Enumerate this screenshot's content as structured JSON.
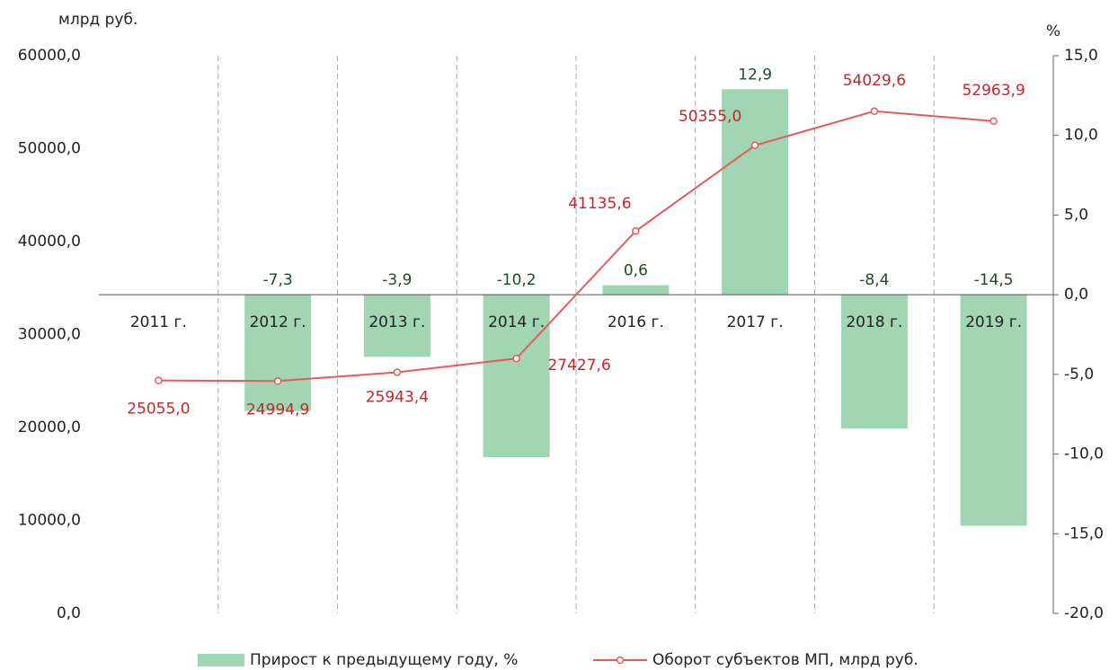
{
  "chart_data": {
    "type": "bar+line",
    "y_label": "млрд руб.",
    "y2_label": "%",
    "categories": [
      "2011 г.",
      "2012 г.",
      "2013 г.",
      "2014 г.",
      "2016 г.",
      "2017 г.",
      "2018 г.",
      "2019 г."
    ],
    "series": [
      {
        "name": "Прирост к предыдущему году, %",
        "type": "bar",
        "axis": "y2",
        "color": "#a2d5b4",
        "values": [
          null,
          -7.3,
          -3.9,
          -10.2,
          0.6,
          12.9,
          -8.4,
          -14.5
        ],
        "value_labels": [
          null,
          "-7,3",
          "-3,9",
          "-10,2",
          "0,6",
          "12,9",
          "-8,4",
          "-14,5"
        ]
      },
      {
        "name": "Оборот субъектов МП, млрд руб.",
        "type": "line",
        "axis": "y",
        "color": "#e8595a",
        "values": [
          25055.0,
          24994.9,
          25943.4,
          27427.6,
          41135.6,
          50355.0,
          54029.6,
          52963.9
        ],
        "value_labels": [
          "25055,0",
          "24994,9",
          "25943,4",
          "27427,6",
          "41135,6",
          "50355,0",
          "54029,6",
          "52963,9"
        ]
      }
    ],
    "ylim": [
      0,
      60000
    ],
    "yticks": [
      {
        "value": 0,
        "label": "0,0"
      },
      {
        "value": 10000,
        "label": "10000,0"
      },
      {
        "value": 20000,
        "label": "20000,0"
      },
      {
        "value": 30000,
        "label": "30000,0"
      },
      {
        "value": 40000,
        "label": "40000,0"
      },
      {
        "value": 50000,
        "label": "50000,0"
      },
      {
        "value": 60000,
        "label": "60000,0"
      }
    ],
    "y2lim": [
      -20,
      15
    ],
    "y2ticks": [
      {
        "value": -20,
        "label": "-20,0"
      },
      {
        "value": -15,
        "label": "-15,0"
      },
      {
        "value": -10,
        "label": "-10,0"
      },
      {
        "value": -5,
        "label": "-5,0"
      },
      {
        "value": 0,
        "label": "0,0"
      },
      {
        "value": 5,
        "label": "5,0"
      },
      {
        "value": 10,
        "label": "10,0"
      },
      {
        "value": 15,
        "label": "15,0"
      }
    ],
    "legend": "bottom"
  }
}
